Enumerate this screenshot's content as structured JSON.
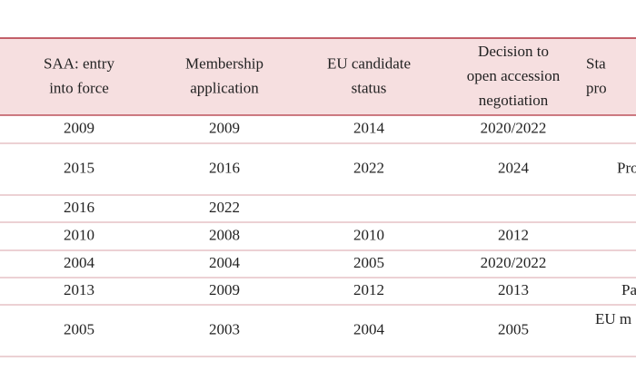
{
  "table": {
    "header": [
      [
        "SAA: entry",
        "into force"
      ],
      [
        "Membership",
        "application"
      ],
      [
        "EU candidate",
        "status"
      ],
      [
        "Decision to",
        "open accession",
        "negotiation"
      ],
      [
        "Sta",
        "pro"
      ]
    ],
    "rows": [
      [
        "2009",
        "2009",
        "2014",
        "2020/2022",
        null
      ],
      [
        "2015",
        "2016",
        "2022",
        "2024",
        "Pro"
      ],
      [
        "2016",
        "2022",
        null,
        null,
        null
      ],
      [
        "2010",
        "2008",
        "2010",
        "2012",
        null
      ],
      [
        "2004",
        "2004",
        "2005",
        "2020/2022",
        null
      ],
      [
        "2013",
        "2009",
        "2012",
        "2013",
        "Pa"
      ],
      [
        "2005",
        "2003",
        "2004",
        "2005",
        "EU m"
      ]
    ]
  }
}
